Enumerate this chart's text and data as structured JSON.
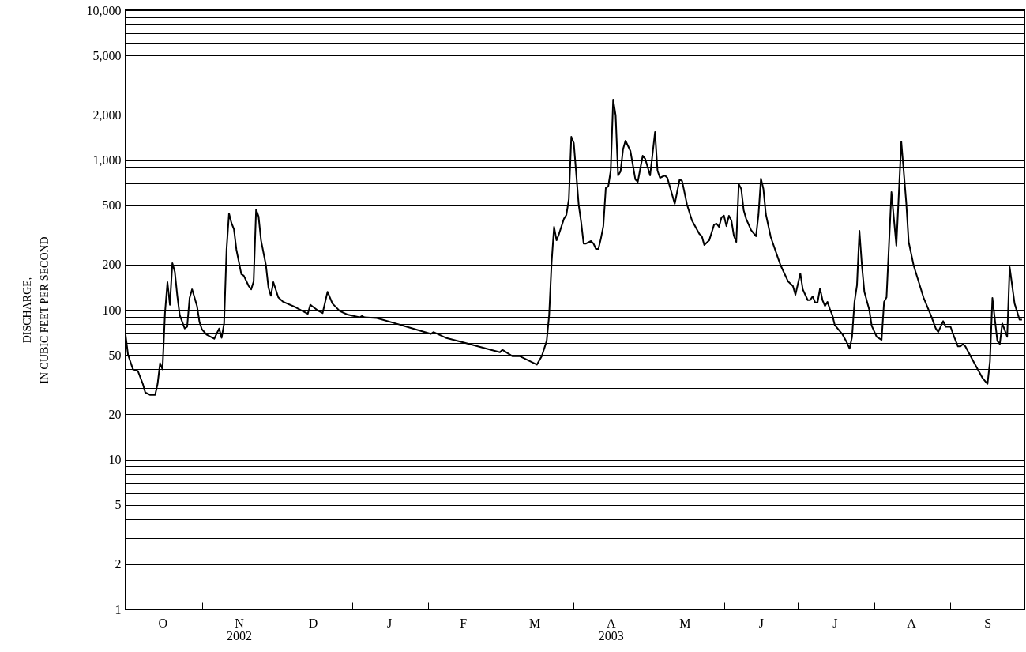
{
  "chart_data": {
    "type": "line",
    "ylabel": "DISCHARGE,\nIN CUBIC FEET PER SECOND",
    "log": "y",
    "grid": "y",
    "xlim": [
      "2002-10-01",
      "2003-10-01"
    ],
    "ylim": [
      1,
      10000
    ],
    "xticks": [
      {
        "value": "2002-10-01",
        "label": null
      },
      {
        "value": "2002-10-16",
        "label": "O"
      },
      {
        "value": "2002-11-01",
        "label": null
      },
      {
        "value": "2002-11-16",
        "label": "N\n2002"
      },
      {
        "value": "2002-12-01",
        "label": null
      },
      {
        "value": "2002-12-16",
        "label": "D"
      },
      {
        "value": "2003-01-01",
        "label": null
      },
      {
        "value": "2003-01-16",
        "label": "J"
      },
      {
        "value": "2003-02-01",
        "label": null
      },
      {
        "value": "2003-02-15",
        "label": "F"
      },
      {
        "value": "2003-03-01",
        "label": null
      },
      {
        "value": "2003-03-16",
        "label": "M"
      },
      {
        "value": "2003-04-01",
        "label": null
      },
      {
        "value": "2003-04-16",
        "label": "A\n2003"
      },
      {
        "value": "2003-05-01",
        "label": null
      },
      {
        "value": "2003-05-16",
        "label": "M"
      },
      {
        "value": "2003-06-01",
        "label": null
      },
      {
        "value": "2003-06-16",
        "label": "J"
      },
      {
        "value": "2003-07-01",
        "label": null
      },
      {
        "value": "2003-07-16",
        "label": "J"
      },
      {
        "value": "2003-08-01",
        "label": null
      },
      {
        "value": "2003-08-16",
        "label": "A"
      },
      {
        "value": "2003-09-01",
        "label": null
      },
      {
        "value": "2003-09-16",
        "label": "S"
      },
      {
        "value": "2003-10-01",
        "label": null
      }
    ],
    "yticks": [
      1,
      2,
      {
        "value": 3,
        "label": null
      },
      {
        "value": 4,
        "label": null
      },
      5,
      {
        "value": 6,
        "label": null
      },
      {
        "value": 7,
        "label": null
      },
      {
        "value": 8,
        "label": null
      },
      {
        "value": 9,
        "label": null
      },
      10,
      20,
      {
        "value": 30,
        "label": null
      },
      {
        "value": 40,
        "label": null
      },
      50,
      {
        "value": 60,
        "label": null
      },
      {
        "value": 70,
        "label": null
      },
      {
        "value": 80,
        "label": null
      },
      {
        "value": 90,
        "label": null
      },
      100,
      200,
      {
        "value": 300,
        "label": null
      },
      {
        "value": 400,
        "label": null
      },
      500,
      {
        "value": 600,
        "label": null
      },
      {
        "value": 700,
        "label": null
      },
      {
        "value": 800,
        "label": null
      },
      {
        "value": 900,
        "label": null
      },
      {
        "value": 1000,
        "label": "1,000"
      },
      {
        "value": 2000,
        "label": "2,000"
      },
      {
        "value": 3000,
        "label": null
      },
      {
        "value": 4000,
        "label": null
      },
      {
        "value": 5000,
        "label": "5,000"
      },
      {
        "value": 6000,
        "label": null
      },
      {
        "value": 7000,
        "label": null
      },
      {
        "value": 8000,
        "label": null
      },
      {
        "value": 9000,
        "label": null
      },
      {
        "value": 10000,
        "label": "10,000"
      }
    ],
    "x": [
      "2002-10-01",
      "2002-10-02",
      "2002-10-04",
      "2002-10-06",
      "2002-10-08",
      "2002-10-09",
      "2002-10-11",
      "2002-10-13",
      "2002-10-14",
      "2002-10-15",
      "2002-10-16",
      "2002-10-17",
      "2002-10-18",
      "2002-10-19",
      "2002-10-20",
      "2002-10-21",
      "2002-10-22",
      "2002-10-23",
      "2002-10-25",
      "2002-10-26",
      "2002-10-27",
      "2002-10-28",
      "2002-10-30",
      "2002-10-31",
      "2002-11-01",
      "2002-11-03",
      "2002-11-06",
      "2002-11-08",
      "2002-11-09",
      "2002-11-10",
      "2002-11-11",
      "2002-11-12",
      "2002-11-13",
      "2002-11-14",
      "2002-11-15",
      "2002-11-17",
      "2002-11-18",
      "2002-11-20",
      "2002-11-21",
      "2002-11-22",
      "2002-11-23",
      "2002-11-24",
      "2002-11-25",
      "2002-11-27",
      "2002-11-28",
      "2002-11-29",
      "2002-11-30",
      "2002-12-02",
      "2002-12-04",
      "2002-12-09",
      "2002-12-14",
      "2002-12-15",
      "2002-12-16",
      "2002-12-18",
      "2002-12-20",
      "2002-12-22",
      "2002-12-24",
      "2002-12-27",
      "2002-12-30",
      "2003-01-04",
      "2003-01-05",
      "2003-01-06",
      "2003-01-11",
      "2003-01-21",
      "2003-02-02",
      "2003-02-03",
      "2003-02-08",
      "2003-02-16",
      "2003-03-02",
      "2003-03-03",
      "2003-03-07",
      "2003-03-10",
      "2003-03-17",
      "2003-03-19",
      "2003-03-21",
      "2003-03-22",
      "2003-03-23",
      "2003-03-24",
      "2003-03-25",
      "2003-03-26",
      "2003-03-28",
      "2003-03-29",
      "2003-03-30",
      "2003-03-31",
      "2003-04-01",
      "2003-04-03",
      "2003-04-04",
      "2003-04-05",
      "2003-04-06",
      "2003-04-08",
      "2003-04-09",
      "2003-04-10",
      "2003-04-11",
      "2003-04-12",
      "2003-04-13",
      "2003-04-14",
      "2003-04-15",
      "2003-04-16",
      "2003-04-17",
      "2003-04-18",
      "2003-04-19",
      "2003-04-20",
      "2003-04-21",
      "2003-04-22",
      "2003-04-24",
      "2003-04-26",
      "2003-04-27",
      "2003-04-29",
      "2003-04-30",
      "2003-05-02",
      "2003-05-04",
      "2003-05-05",
      "2003-05-06",
      "2003-05-08",
      "2003-05-09",
      "2003-05-12",
      "2003-05-14",
      "2003-05-15",
      "2003-05-17",
      "2003-05-19",
      "2003-05-22",
      "2003-05-23",
      "2003-05-24",
      "2003-05-26",
      "2003-05-28",
      "2003-05-29",
      "2003-05-30",
      "2003-05-31",
      "2003-06-01",
      "2003-06-02",
      "2003-06-03",
      "2003-06-04",
      "2003-06-05",
      "2003-06-06",
      "2003-06-07",
      "2003-06-08",
      "2003-06-09",
      "2003-06-10",
      "2003-06-12",
      "2003-06-14",
      "2003-06-15",
      "2003-06-16",
      "2003-06-17",
      "2003-06-18",
      "2003-06-20",
      "2003-06-23",
      "2003-06-24",
      "2003-06-27",
      "2003-06-29",
      "2003-06-30",
      "2003-07-02",
      "2003-07-03",
      "2003-07-05",
      "2003-07-06",
      "2003-07-07",
      "2003-07-08",
      "2003-07-09",
      "2003-07-10",
      "2003-07-11",
      "2003-07-12",
      "2003-07-13",
      "2003-07-14",
      "2003-07-15",
      "2003-07-16",
      "2003-07-19",
      "2003-07-21",
      "2003-07-22",
      "2003-07-23",
      "2003-07-24",
      "2003-07-25",
      "2003-07-26",
      "2003-07-27",
      "2003-07-28",
      "2003-07-30",
      "2003-07-31",
      "2003-08-02",
      "2003-08-04",
      "2003-08-05",
      "2003-08-06",
      "2003-08-08",
      "2003-08-10",
      "2003-08-12",
      "2003-08-14",
      "2003-08-15",
      "2003-08-17",
      "2003-08-21",
      "2003-08-24",
      "2003-08-26",
      "2003-08-27",
      "2003-08-29",
      "2003-08-30",
      "2003-09-01",
      "2003-09-02",
      "2003-09-04",
      "2003-09-05",
      "2003-09-06",
      "2003-09-07",
      "2003-09-11",
      "2003-09-14",
      "2003-09-16",
      "2003-09-17",
      "2003-09-18",
      "2003-09-20",
      "2003-09-21",
      "2003-09-22",
      "2003-09-24",
      "2003-09-25",
      "2003-09-27",
      "2003-09-29",
      "2003-09-30"
    ],
    "series": [
      {
        "color": "#000000",
        "values": [
          68,
          50,
          40,
          39,
          32,
          28,
          27,
          27,
          32,
          44,
          40,
          95,
          153,
          108,
          205,
          179,
          124,
          92,
          75,
          77,
          120,
          137,
          106,
          83,
          74,
          68,
          64,
          75,
          65,
          81,
          252,
          440,
          380,
          345,
          252,
          173,
          169,
          144,
          137,
          155,
          468,
          420,
          291,
          198,
          141,
          124,
          153,
          121,
          113,
          104,
          94,
          108,
          105,
          99,
          95,
          132,
          110,
          98,
          93,
          89,
          91,
          89,
          88,
          79,
          69,
          71,
          65,
          60,
          52,
          54,
          49,
          49,
          43,
          49,
          62,
          92,
          207,
          358,
          291,
          321,
          405,
          430,
          548,
          1430,
          1300,
          503,
          385,
          277,
          277,
          288,
          277,
          255,
          255,
          298,
          362,
          650,
          666,
          849,
          2535,
          1987,
          789,
          838,
          1178,
          1347,
          1150,
          743,
          716,
          1069,
          1019,
          789,
          1540,
          849,
          761,
          789,
          761,
          510,
          743,
          724,
          503,
          395,
          321,
          310,
          271,
          291,
          371,
          376,
          358,
          414,
          425,
          362,
          425,
          395,
          313,
          284,
          690,
          642,
          462,
          405,
          341,
          310,
          430,
          751,
          642,
          435,
          306,
          220,
          198,
          155,
          144,
          126,
          175,
          137,
          116,
          116,
          123,
          112,
          112,
          139,
          116,
          106,
          113,
          101,
          92,
          79,
          69,
          60,
          55,
          66,
          113,
          146,
          337,
          198,
          132,
          100,
          78,
          66,
          63,
          113,
          121,
          611,
          268,
          1330,
          522,
          284,
          198,
          121,
          92,
          75,
          71,
          84,
          77,
          77,
          69,
          57,
          57,
          59,
          57,
          43,
          35,
          32,
          45,
          120,
          62,
          59,
          81,
          66,
          193,
          110,
          86,
          86
        ]
      }
    ]
  }
}
